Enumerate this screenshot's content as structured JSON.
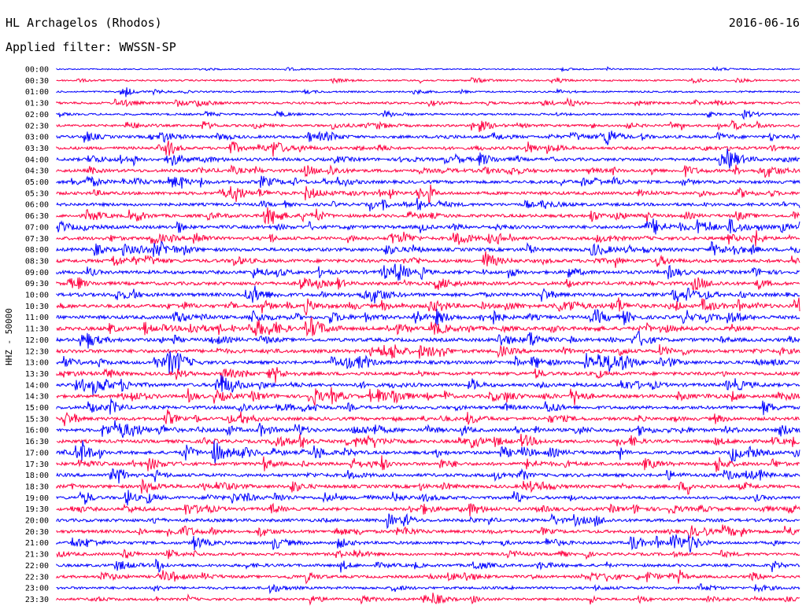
{
  "header": {
    "station": "HL Archagelos (Rhodos)",
    "date": "2016-06-16",
    "filter": "Applied filter: WWSSN-SP"
  },
  "chart_data": {
    "type": "line",
    "title": "HL Archagelos (Rhodos)",
    "ylabel": "HHZ - 50000",
    "grid": false,
    "tick_labels": [
      "00:00",
      "00:30",
      "01:00",
      "01:30",
      "02:00",
      "02:30",
      "03:00",
      "03:30",
      "04:00",
      "04:30",
      "05:00",
      "05:30",
      "06:00",
      "06:30",
      "07:00",
      "07:30",
      "08:00",
      "08:30",
      "09:00",
      "09:30",
      "10:00",
      "10:30",
      "11:00",
      "11:30",
      "12:00",
      "12:30",
      "13:00",
      "13:30",
      "14:00",
      "14:30",
      "15:00",
      "15:30",
      "16:00",
      "16:30",
      "17:00",
      "17:30",
      "18:00",
      "18:30",
      "19:00",
      "19:30",
      "20:00",
      "20:30",
      "21:00",
      "21:30",
      "22:00",
      "22:30",
      "23:00",
      "23:30"
    ],
    "series_colors": [
      "#0000ff",
      "#ff0040"
    ],
    "activity_levels": [
      0.1,
      0.25,
      0.25,
      0.5,
      0.4,
      0.5,
      0.7,
      0.7,
      0.8,
      0.8,
      0.8,
      0.8,
      0.8,
      0.8,
      0.9,
      0.85,
      0.9,
      0.9,
      0.9,
      0.9,
      0.95,
      0.95,
      0.95,
      0.95,
      0.95,
      0.95,
      0.9,
      0.9,
      0.9,
      0.85,
      0.85,
      0.85,
      0.85,
      0.85,
      0.85,
      0.85,
      0.85,
      0.85,
      0.8,
      0.8,
      0.8,
      0.8,
      0.75,
      0.7,
      0.7,
      0.65,
      0.6,
      0.55
    ]
  }
}
